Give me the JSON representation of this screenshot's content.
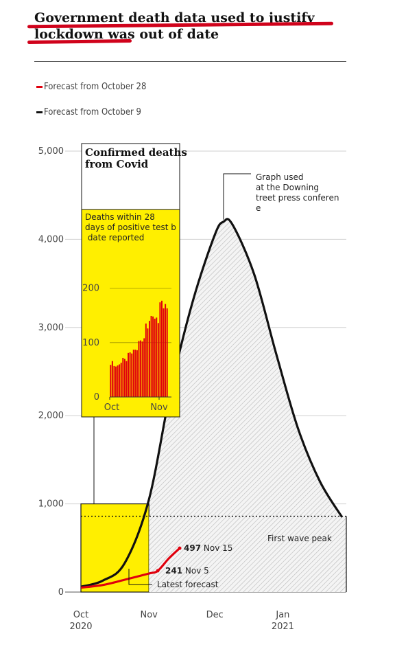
{
  "headline": "Government death data used to justify lockdown was out of date",
  "legend": [
    {
      "label": "Forecast from October 28",
      "color": "#e0000d"
    },
    {
      "label": "Forecast from October 9",
      "color": "#111111"
    }
  ],
  "colors": {
    "red": "#e0000d",
    "black": "#111111",
    "yellow": "#ffef00",
    "hatch": "#bdbdbd"
  },
  "chart_data": [
    {
      "type": "line",
      "ylim": [
        0,
        5000
      ],
      "y_ticks": [
        "5,000",
        "4,000",
        "3,000",
        "2,000",
        "1,000",
        "0"
      ],
      "x_ticks": [
        {
          "line1": "Oct",
          "line2": "2020"
        },
        {
          "line1": "Nov",
          "line2": ""
        },
        {
          "line1": "Dec",
          "line2": ""
        },
        {
          "line1": "Jan",
          "line2": "2021"
        }
      ],
      "series": [
        {
          "name": "Forecast from October 9",
          "x": [
            "Oct 1",
            "Oct 11",
            "Oct 21",
            "Nov 1",
            "Nov 11",
            "Nov 21",
            "Dec 1",
            "Dec 5",
            "Dec 9",
            "Dec 19",
            "Dec 29",
            "Jan 8",
            "Jan 18",
            "Jan 28"
          ],
          "values": [
            60,
            130,
            330,
            1050,
            2300,
            3300,
            4050,
            4200,
            4170,
            3600,
            2700,
            1850,
            1250,
            850
          ]
        },
        {
          "name": "Forecast from October 28",
          "x": [
            "Oct 1",
            "Oct 11",
            "Oct 21",
            "Nov 1",
            "Nov 5",
            "Nov 10",
            "Nov 15"
          ],
          "values": [
            50,
            80,
            140,
            210,
            241,
            380,
            497
          ]
        }
      ],
      "first_wave_peak": 860,
      "annotations": {
        "graph_used": "Graph used at the Downing Street press conference",
        "first_wave_peak": "First wave peak",
        "latest_forecast": "Latest forecast",
        "point_nov15_value": "497",
        "point_nov15_date": "Nov 15",
        "point_nov5_value": "241",
        "point_nov5_date": "Nov 5"
      }
    },
    {
      "type": "bar",
      "title": "Confirmed deaths from Covid",
      "subtitle": "Deaths within 28 days of positive test by date reported",
      "ylim": [
        0,
        250
      ],
      "y_ticks": [
        "200",
        "100",
        "0"
      ],
      "x_ticks": [
        "Oct",
        "Nov"
      ],
      "values": [
        59,
        66,
        57,
        56,
        58,
        60,
        63,
        72,
        70,
        66,
        81,
        82,
        80,
        87,
        87,
        86,
        103,
        104,
        102,
        108,
        135,
        126,
        140,
        149,
        148,
        144,
        146,
        136,
        174,
        177,
        163,
        171,
        163
      ]
    }
  ]
}
